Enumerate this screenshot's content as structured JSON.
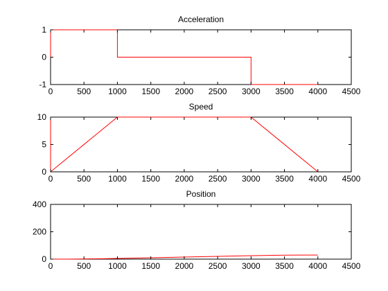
{
  "chart_data": [
    {
      "type": "line",
      "title": "Acceleration",
      "xlabel": "",
      "ylabel": "",
      "xlim": [
        0,
        4500
      ],
      "ylim": [
        -1,
        1
      ],
      "xticks": [
        0,
        500,
        1000,
        1500,
        2000,
        2500,
        3000,
        3500,
        4000,
        4500
      ],
      "yticks": [
        -1,
        0,
        1
      ],
      "grid": false,
      "series": [
        {
          "color": "#ff0000",
          "x": [
            0,
            0,
            1000,
            1000,
            3000,
            3000,
            4000
          ],
          "y": [
            0,
            1,
            1,
            0,
            0,
            -1,
            -1
          ]
        }
      ]
    },
    {
      "type": "line",
      "title": "Speed",
      "xlabel": "",
      "ylabel": "",
      "xlim": [
        0,
        4500
      ],
      "ylim": [
        0,
        10
      ],
      "xticks": [
        0,
        500,
        1000,
        1500,
        2000,
        2500,
        3000,
        3500,
        4000,
        4500
      ],
      "yticks": [
        0,
        5,
        10
      ],
      "grid": false,
      "series": [
        {
          "color": "#ff0000",
          "x": [
            0,
            0,
            1000,
            3000,
            4000
          ],
          "y": [
            10,
            0,
            10,
            10,
            0
          ]
        }
      ]
    },
    {
      "type": "line",
      "title": "Position",
      "xlabel": "",
      "ylabel": "",
      "xlim": [
        0,
        4500
      ],
      "ylim": [
        0,
        400
      ],
      "xticks": [
        0,
        500,
        1000,
        1500,
        2000,
        2500,
        3000,
        3500,
        4000,
        4500
      ],
      "yticks": [
        0,
        200,
        400
      ],
      "grid": false,
      "series": [
        {
          "color": "#ff0000",
          "x": [
            0,
            250,
            500,
            750,
            1000,
            1250,
            1500,
            1750,
            2000,
            2250,
            2500,
            2750,
            3000,
            3250,
            3500,
            3750,
            4000
          ],
          "y": [
            0,
            0.3,
            1.3,
            2.8,
            5,
            7.5,
            10,
            12.5,
            15,
            17.5,
            20,
            22.5,
            25,
            27.2,
            28.8,
            29.7,
            30
          ]
        }
      ]
    }
  ]
}
